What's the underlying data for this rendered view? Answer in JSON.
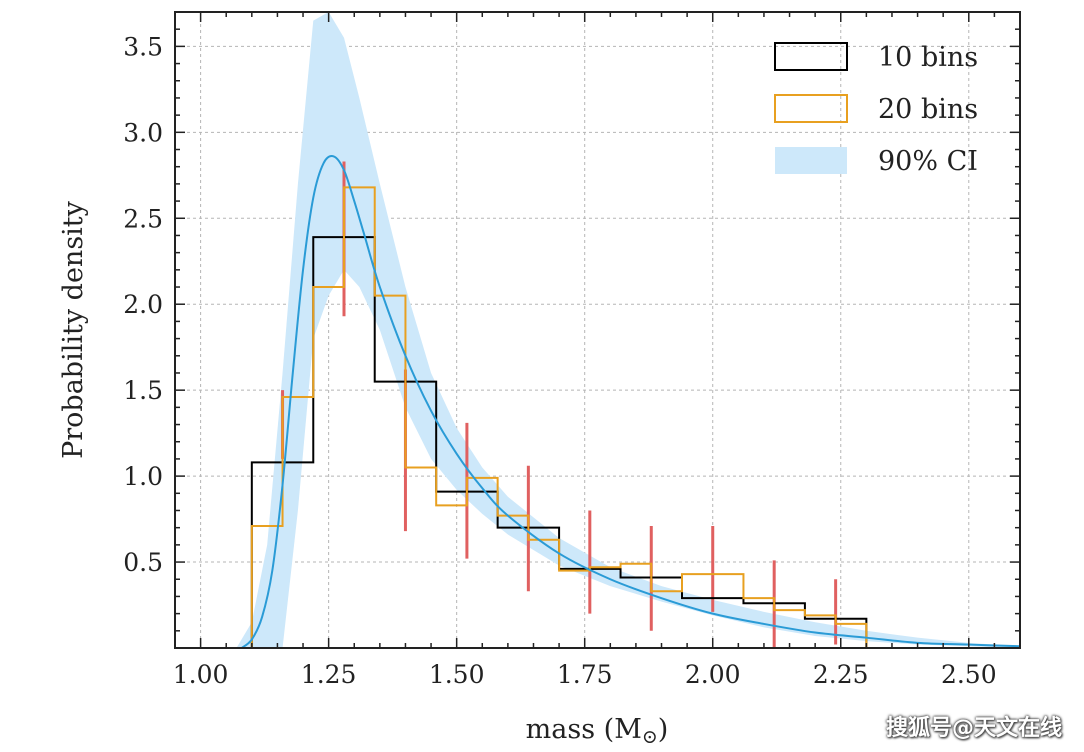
{
  "chart_data": {
    "type": "line",
    "title": "",
    "xlabel": "mass (M",
    "xlabel_sub": "⊙",
    "xlabel_close": ")",
    "ylabel": "Probability density",
    "xlim": [
      0.95,
      2.6
    ],
    "ylim": [
      0.0,
      3.7
    ],
    "xticks": [
      1.0,
      1.25,
      1.5,
      1.75,
      2.0,
      2.25,
      2.5
    ],
    "xtick_labels": [
      "1.00",
      "1.25",
      "1.50",
      "1.75",
      "2.00",
      "2.25",
      "2.50"
    ],
    "yticks": [
      0.5,
      1.0,
      1.5,
      2.0,
      2.5,
      3.0,
      3.5
    ],
    "ytick_labels": [
      "0.5",
      "1.0",
      "1.5",
      "2.0",
      "2.5",
      "3.0",
      "3.5"
    ],
    "grid": true,
    "legend_position": "top-right",
    "legend": [
      "10 bins",
      "20 bins",
      "90% CI"
    ],
    "colors": {
      "hist10": "#000000",
      "hist20": "#e8a020",
      "ci": "#cde8fa",
      "curve": "#2a9bd6",
      "errorbar": "#e06060"
    },
    "ci_band": {
      "x": [
        1.07,
        1.1,
        1.13,
        1.16,
        1.19,
        1.22,
        1.25,
        1.28,
        1.31,
        1.35,
        1.4,
        1.45,
        1.5,
        1.55,
        1.6,
        1.7,
        1.8,
        1.9,
        2.0,
        2.1,
        2.2,
        2.3,
        2.4,
        2.5,
        2.6
      ],
      "lower": [
        0.0,
        0.0,
        0.0,
        0.0,
        0.8,
        1.8,
        2.05,
        2.2,
        2.1,
        1.85,
        1.4,
        1.1,
        0.92,
        0.78,
        0.66,
        0.48,
        0.36,
        0.27,
        0.19,
        0.12,
        0.07,
        0.04,
        0.02,
        0.01,
        0.0
      ],
      "upper": [
        0.0,
        0.15,
        0.6,
        1.6,
        2.7,
        3.65,
        3.7,
        3.55,
        3.2,
        2.7,
        2.1,
        1.6,
        1.28,
        1.05,
        0.88,
        0.64,
        0.47,
        0.36,
        0.28,
        0.21,
        0.15,
        0.1,
        0.06,
        0.03,
        0.01
      ]
    },
    "curve": {
      "x": [
        1.08,
        1.1,
        1.12,
        1.14,
        1.16,
        1.18,
        1.2,
        1.22,
        1.24,
        1.26,
        1.28,
        1.3,
        1.32,
        1.35,
        1.4,
        1.45,
        1.5,
        1.55,
        1.6,
        1.7,
        1.8,
        1.9,
        2.0,
        2.1,
        2.2,
        2.3,
        2.4,
        2.5,
        2.6
      ],
      "y": [
        0.0,
        0.05,
        0.18,
        0.45,
        0.95,
        1.6,
        2.2,
        2.62,
        2.82,
        2.86,
        2.78,
        2.6,
        2.4,
        2.1,
        1.7,
        1.38,
        1.13,
        0.93,
        0.77,
        0.55,
        0.4,
        0.29,
        0.2,
        0.14,
        0.09,
        0.06,
        0.03,
        0.02,
        0.01
      ]
    },
    "series": [
      {
        "name": "10 bins",
        "edges": [
          1.1,
          1.22,
          1.34,
          1.46,
          1.58,
          1.7,
          1.82,
          1.94,
          2.06,
          2.18,
          2.3
        ],
        "values": [
          1.08,
          2.39,
          1.55,
          0.91,
          0.7,
          0.46,
          0.41,
          0.29,
          0.26,
          0.17
        ]
      },
      {
        "name": "20 bins",
        "edges": [
          1.1,
          1.16,
          1.22,
          1.28,
          1.34,
          1.4,
          1.46,
          1.52,
          1.58,
          1.64,
          1.7,
          1.76,
          1.82,
          1.88,
          1.94,
          2.0,
          2.06,
          2.12,
          2.18,
          2.24,
          2.3
        ],
        "values": [
          0.71,
          1.46,
          2.1,
          2.68,
          2.05,
          1.05,
          0.83,
          0.99,
          0.77,
          0.63,
          0.45,
          0.47,
          0.49,
          0.33,
          0.43,
          0.43,
          0.29,
          0.22,
          0.19,
          0.14
        ]
      }
    ],
    "error_bars": [
      {
        "x": 1.16,
        "low": 1.1,
        "high": 1.5
      },
      {
        "x": 1.28,
        "low": 1.93,
        "high": 2.83
      },
      {
        "x": 1.4,
        "low": 0.68,
        "high": 1.62
      },
      {
        "x": 1.52,
        "low": 0.52,
        "high": 1.31
      },
      {
        "x": 1.64,
        "low": 0.33,
        "high": 1.06
      },
      {
        "x": 1.76,
        "low": 0.2,
        "high": 0.8
      },
      {
        "x": 1.88,
        "low": 0.1,
        "high": 0.71
      },
      {
        "x": 2.0,
        "low": 0.21,
        "high": 0.71
      },
      {
        "x": 2.12,
        "low": 0.0,
        "high": 0.51
      },
      {
        "x": 2.24,
        "low": 0.02,
        "high": 0.4
      }
    ]
  },
  "watermark": "搜狐号@天文在线"
}
